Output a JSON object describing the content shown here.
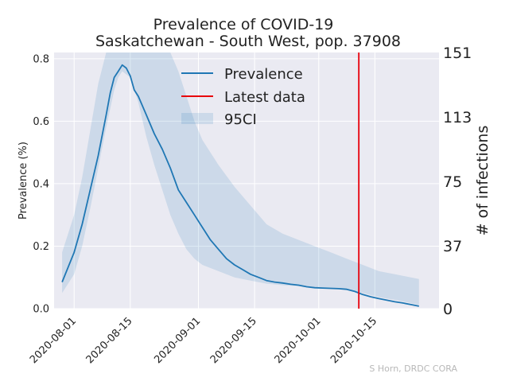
{
  "chart_data": {
    "type": "line",
    "title": "Prevalence of COVID-19",
    "subtitle": "Saskatchewan - South West, pop. 37908",
    "ylabel": "Prevalence (%)",
    "y2label": "# of infections",
    "ylim": [
      0,
      0.82
    ],
    "yticks": [
      0.0,
      0.2,
      0.4,
      0.6,
      0.8
    ],
    "yticklabels": [
      "0.0",
      "0.2",
      "0.4",
      "0.6",
      "0.8"
    ],
    "y2ticks": [
      0,
      37,
      75,
      113,
      151
    ],
    "y2ticklabels": [
      "0",
      "37",
      "75",
      "113",
      "151"
    ],
    "xlim": [
      "2020-07-27",
      "2020-10-31"
    ],
    "xticks": [
      "2020-08-01",
      "2020-08-15",
      "2020-09-01",
      "2020-09-15",
      "2020-10-01",
      "2020-10-15"
    ],
    "grid": true,
    "legend": {
      "position": "top-center",
      "entries": [
        {
          "label": "Prevalence",
          "kind": "line",
          "color": "#1f77b4"
        },
        {
          "label": "Latest data",
          "kind": "line",
          "color": "#e8000b"
        },
        {
          "label": "95CI",
          "kind": "band",
          "color": "#1f77b4"
        }
      ]
    },
    "latest_data_date": "2020-10-11",
    "series": [
      {
        "name": "Prevalence",
        "color": "#1f77b4",
        "x": [
          "2020-07-29",
          "2020-08-01",
          "2020-08-03",
          "2020-08-05",
          "2020-08-07",
          "2020-08-09",
          "2020-08-10",
          "2020-08-11",
          "2020-08-12",
          "2020-08-13",
          "2020-08-14",
          "2020-08-15",
          "2020-08-16",
          "2020-08-17",
          "2020-08-19",
          "2020-08-21",
          "2020-08-23",
          "2020-08-25",
          "2020-08-27",
          "2020-08-29",
          "2020-08-31",
          "2020-09-02",
          "2020-09-04",
          "2020-09-06",
          "2020-09-08",
          "2020-09-10",
          "2020-09-12",
          "2020-09-14",
          "2020-09-16",
          "2020-09-18",
          "2020-09-20",
          "2020-09-22",
          "2020-09-24",
          "2020-09-26",
          "2020-09-28",
          "2020-09-30",
          "2020-10-02",
          "2020-10-04",
          "2020-10-06",
          "2020-10-08",
          "2020-10-10",
          "2020-10-12",
          "2020-10-14",
          "2020-10-16",
          "2020-10-18",
          "2020-10-20",
          "2020-10-22",
          "2020-10-24",
          "2020-10-26"
        ],
        "values": [
          0.085,
          0.18,
          0.27,
          0.38,
          0.49,
          0.62,
          0.69,
          0.74,
          0.76,
          0.78,
          0.77,
          0.745,
          0.7,
          0.68,
          0.62,
          0.56,
          0.51,
          0.45,
          0.38,
          0.34,
          0.3,
          0.26,
          0.22,
          0.19,
          0.16,
          0.14,
          0.125,
          0.11,
          0.1,
          0.09,
          0.085,
          0.082,
          0.078,
          0.075,
          0.07,
          0.067,
          0.066,
          0.065,
          0.064,
          0.062,
          0.055,
          0.045,
          0.038,
          0.032,
          0.027,
          0.022,
          0.018,
          0.013,
          0.008
        ]
      }
    ],
    "ci95": {
      "x": [
        "2020-07-29",
        "2020-08-01",
        "2020-08-03",
        "2020-08-05",
        "2020-08-07",
        "2020-08-09",
        "2020-08-10",
        "2020-08-11",
        "2020-08-12",
        "2020-08-13",
        "2020-08-15",
        "2020-08-17",
        "2020-08-19",
        "2020-08-21",
        "2020-08-23",
        "2020-08-25",
        "2020-08-27",
        "2020-08-29",
        "2020-08-31",
        "2020-09-02",
        "2020-09-06",
        "2020-09-10",
        "2020-09-14",
        "2020-09-18",
        "2020-09-22",
        "2020-09-26",
        "2020-09-30",
        "2020-10-04",
        "2020-10-08",
        "2020-10-12",
        "2020-10-16",
        "2020-10-20",
        "2020-10-24",
        "2020-10-26"
      ],
      "lower": [
        0.05,
        0.11,
        0.2,
        0.32,
        0.45,
        0.58,
        0.64,
        0.7,
        0.74,
        0.76,
        0.74,
        0.66,
        0.55,
        0.46,
        0.38,
        0.3,
        0.24,
        0.19,
        0.16,
        0.14,
        0.12,
        0.1,
        0.09,
        0.08,
        0.075,
        0.072,
        0.068,
        0.067,
        0.062,
        0.05,
        0.037,
        0.028,
        0.018,
        0.012
      ],
      "upper": [
        0.18,
        0.3,
        0.42,
        0.57,
        0.72,
        0.88,
        1.0,
        1.0,
        1.0,
        1.0,
        1.0,
        1.0,
        1.0,
        0.99,
        0.93,
        0.84,
        0.76,
        0.68,
        0.6,
        0.54,
        0.46,
        0.39,
        0.33,
        0.27,
        0.24,
        0.22,
        0.2,
        0.18,
        0.16,
        0.14,
        0.12,
        0.11,
        0.1,
        0.095
      ]
    }
  },
  "credit": "S Horn, DRDC CORA"
}
